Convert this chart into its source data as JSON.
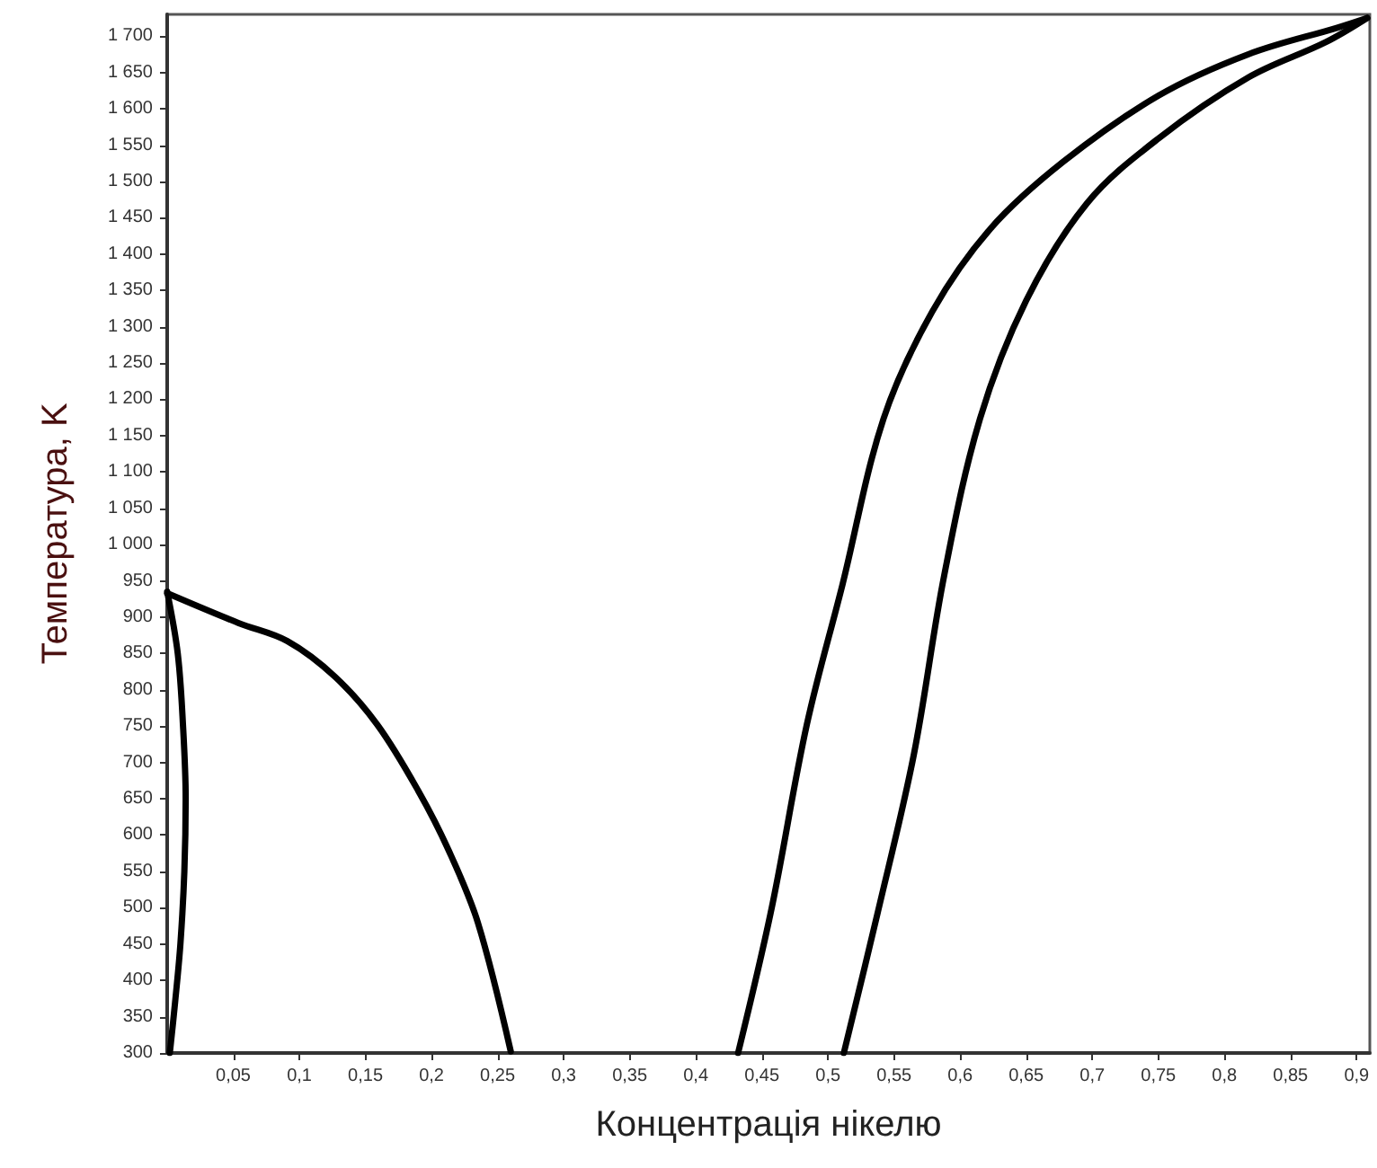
{
  "chart_data": {
    "type": "line",
    "xlabel": "Концентрація нікелю",
    "ylabel": "Температура, K",
    "xlim": [
      0,
      0.91
    ],
    "ylim": [
      300,
      1730
    ],
    "xticks": [
      {
        "value": 0.05,
        "label": "0,05"
      },
      {
        "value": 0.1,
        "label": "0,1"
      },
      {
        "value": 0.15,
        "label": "0,15"
      },
      {
        "value": 0.2,
        "label": "0,2"
      },
      {
        "value": 0.25,
        "label": "0,25"
      },
      {
        "value": 0.3,
        "label": "0,3"
      },
      {
        "value": 0.35,
        "label": "0,35"
      },
      {
        "value": 0.4,
        "label": "0,4"
      },
      {
        "value": 0.45,
        "label": "0,45"
      },
      {
        "value": 0.5,
        "label": "0,5"
      },
      {
        "value": 0.55,
        "label": "0,55"
      },
      {
        "value": 0.6,
        "label": "0,6"
      },
      {
        "value": 0.65,
        "label": "0,65"
      },
      {
        "value": 0.7,
        "label": "0,7"
      },
      {
        "value": 0.75,
        "label": "0,75"
      },
      {
        "value": 0.8,
        "label": "0,8"
      },
      {
        "value": 0.85,
        "label": "0,85"
      },
      {
        "value": 0.9,
        "label": "0,9"
      }
    ],
    "yticks": [
      300,
      350,
      400,
      450,
      500,
      550,
      600,
      650,
      700,
      750,
      800,
      850,
      900,
      950,
      {
        "value": 1000,
        "label": "1 000"
      },
      {
        "value": 1050,
        "label": "1 050"
      },
      {
        "value": 1100,
        "label": "1 100"
      },
      {
        "value": 1150,
        "label": "1 150"
      },
      {
        "value": 1200,
        "label": "1 200"
      },
      {
        "value": 1250,
        "label": "1 250"
      },
      {
        "value": 1300,
        "label": "1 300"
      },
      {
        "value": 1350,
        "label": "1 350"
      },
      {
        "value": 1400,
        "label": "1 400"
      },
      {
        "value": 1450,
        "label": "1 450"
      },
      {
        "value": 1500,
        "label": "1 500"
      },
      {
        "value": 1550,
        "label": "1 550"
      },
      {
        "value": 1600,
        "label": "1 600"
      },
      {
        "value": 1650,
        "label": "1 650"
      },
      {
        "value": 1700,
        "label": "1 700"
      }
    ],
    "grid": false,
    "marker": "none",
    "line_style": "solid",
    "series": [
      {
        "color": "#000000",
        "x": [
          0,
          0.008,
          0.012,
          0.014,
          0.013,
          0.01,
          0.006,
          0.002
        ],
        "values": [
          935,
          850,
          750,
          650,
          550,
          450,
          370,
          300
        ]
      },
      {
        "color": "#000000",
        "x": [
          0,
          0.054,
          0.091,
          0.127,
          0.159,
          0.19,
          0.213,
          0.235,
          0.26
        ],
        "values": [
          933,
          892,
          867,
          818,
          752,
          661,
          579,
          480,
          302
        ]
      },
      {
        "color": "#000000",
        "x": [
          0.432,
          0.457,
          0.484,
          0.511,
          0.542,
          0.579,
          0.623,
          0.678,
          0.75,
          0.818,
          0.886,
          0.908
        ],
        "values": [
          300,
          496,
          752,
          945,
          1173,
          1321,
          1435,
          1527,
          1618,
          1675,
          1712,
          1725
        ]
      },
      {
        "color": "#000000",
        "x": [
          0.512,
          0.538,
          0.565,
          0.588,
          0.615,
          0.65,
          0.696,
          0.75,
          0.818,
          0.877,
          0.908
        ],
        "values": [
          300,
          496,
          711,
          958,
          1173,
          1336,
          1470,
          1559,
          1643,
          1692,
          1725
        ]
      }
    ]
  }
}
